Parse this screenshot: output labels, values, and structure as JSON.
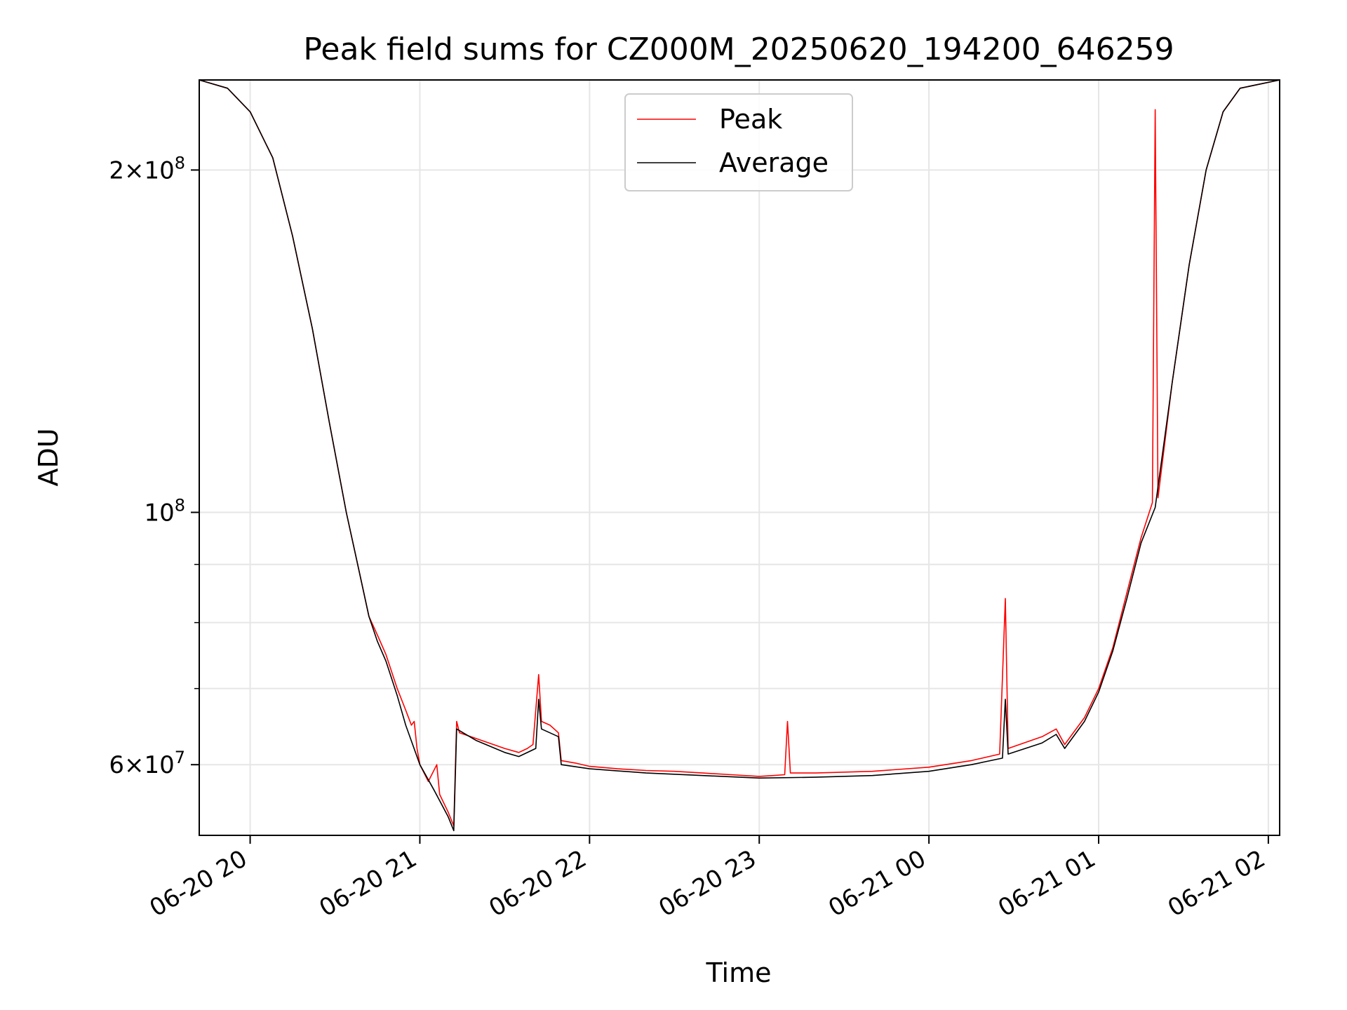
{
  "chart_data": {
    "type": "line",
    "title": "Peak field sums for CZ000M_20250620_194200_646259",
    "xlabel": "Time",
    "ylabel": "ADU",
    "yscale": "log",
    "xlim": [
      "2025-06-20 19:42",
      "2025-06-21 02:04"
    ],
    "ylim": [
      52000000,
      240000000
    ],
    "grid": true,
    "legend_position": "top-center",
    "x_ticks": [
      "06-20 20",
      "06-20 21",
      "06-20 22",
      "06-20 23",
      "06-21 00",
      "06-21 01",
      "06-21 02"
    ],
    "y_major_ticks": [
      {
        "value": 60000000,
        "mantissa": "6",
        "exponent": "7"
      },
      {
        "value": 100000000,
        "mantissa": "",
        "exponent": "8"
      },
      {
        "value": 200000000,
        "mantissa": "2",
        "exponent": "8"
      }
    ],
    "y_minor_gridlines": [
      70000000,
      80000000,
      90000000
    ],
    "series": [
      {
        "name": "Peak",
        "color": "#ff0000",
        "points": [
          [
            "2025-06-20 19:42",
            240000000
          ],
          [
            "2025-06-20 19:52",
            236000000
          ],
          [
            "2025-06-20 20:00",
            225000000
          ],
          [
            "2025-06-20 20:08",
            205000000
          ],
          [
            "2025-06-20 20:15",
            175000000
          ],
          [
            "2025-06-20 20:22",
            145000000
          ],
          [
            "2025-06-20 20:28",
            120000000
          ],
          [
            "2025-06-20 20:34",
            100000000
          ],
          [
            "2025-06-20 20:38",
            90000000
          ],
          [
            "2025-06-20 20:42",
            81000000
          ],
          [
            "2025-06-20 20:45",
            78000000
          ],
          [
            "2025-06-20 20:48",
            75000000
          ],
          [
            "2025-06-20 20:52",
            70000000
          ],
          [
            "2025-06-20 20:55",
            67000000
          ],
          [
            "2025-06-20 20:57",
            65000000
          ],
          [
            "2025-06-20 20:58",
            65500000
          ],
          [
            "2025-06-20 20:59",
            62000000
          ],
          [
            "2025-06-20 21:00",
            60000000
          ],
          [
            "2025-06-20 21:03",
            58000000
          ],
          [
            "2025-06-20 21:06",
            60000000
          ],
          [
            "2025-06-20 21:07",
            56500000
          ],
          [
            "2025-06-20 21:10",
            54500000
          ],
          [
            "2025-06-20 21:12",
            53000000
          ],
          [
            "2025-06-20 21:13",
            65500000
          ],
          [
            "2025-06-20 21:14",
            64000000
          ],
          [
            "2025-06-20 21:18",
            63500000
          ],
          [
            "2025-06-20 21:22",
            63000000
          ],
          [
            "2025-06-20 21:26",
            62500000
          ],
          [
            "2025-06-20 21:30",
            62000000
          ],
          [
            "2025-06-20 21:35",
            61500000
          ],
          [
            "2025-06-20 21:38",
            62000000
          ],
          [
            "2025-06-20 21:40",
            62500000
          ],
          [
            "2025-06-20 21:42",
            72000000
          ],
          [
            "2025-06-20 21:43",
            65500000
          ],
          [
            "2025-06-20 21:46",
            65000000
          ],
          [
            "2025-06-20 21:49",
            64000000
          ],
          [
            "2025-06-20 21:50",
            60500000
          ],
          [
            "2025-06-20 21:55",
            60200000
          ],
          [
            "2025-06-20 22:00",
            59800000
          ],
          [
            "2025-06-20 22:10",
            59500000
          ],
          [
            "2025-06-20 22:20",
            59300000
          ],
          [
            "2025-06-20 22:30",
            59200000
          ],
          [
            "2025-06-20 22:40",
            59000000
          ],
          [
            "2025-06-20 22:50",
            58800000
          ],
          [
            "2025-06-20 23:00",
            58600000
          ],
          [
            "2025-06-20 23:05",
            58700000
          ],
          [
            "2025-06-20 23:09",
            58800000
          ],
          [
            "2025-06-20 23:10",
            65500000
          ],
          [
            "2025-06-20 23:11",
            59000000
          ],
          [
            "2025-06-20 23:20",
            59000000
          ],
          [
            "2025-06-20 23:40",
            59200000
          ],
          [
            "2025-06-21 00:00",
            59700000
          ],
          [
            "2025-06-21 00:15",
            60500000
          ],
          [
            "2025-06-21 00:25",
            61300000
          ],
          [
            "2025-06-21 00:27",
            84000000
          ],
          [
            "2025-06-21 00:28",
            62000000
          ],
          [
            "2025-06-21 00:40",
            63500000
          ],
          [
            "2025-06-21 00:45",
            64500000
          ],
          [
            "2025-06-21 00:48",
            62500000
          ],
          [
            "2025-06-21 00:55",
            66000000
          ],
          [
            "2025-06-21 01:00",
            70000000
          ],
          [
            "2025-06-21 01:05",
            76000000
          ],
          [
            "2025-06-21 01:10",
            85000000
          ],
          [
            "2025-06-21 01:15",
            95000000
          ],
          [
            "2025-06-21 01:19",
            102000000
          ],
          [
            "2025-06-21 01:20",
            226000000
          ],
          [
            "2025-06-21 01:21",
            103000000
          ],
          [
            "2025-06-21 01:26",
            130000000
          ],
          [
            "2025-06-21 01:32",
            165000000
          ],
          [
            "2025-06-21 01:38",
            200000000
          ],
          [
            "2025-06-21 01:44",
            225000000
          ],
          [
            "2025-06-21 01:50",
            236000000
          ],
          [
            "2025-06-21 02:04",
            240000000
          ]
        ]
      },
      {
        "name": "Average",
        "color": "#000000",
        "points": [
          [
            "2025-06-20 19:42",
            240000000
          ],
          [
            "2025-06-20 19:52",
            236000000
          ],
          [
            "2025-06-20 20:00",
            225000000
          ],
          [
            "2025-06-20 20:08",
            205000000
          ],
          [
            "2025-06-20 20:15",
            175000000
          ],
          [
            "2025-06-20 20:22",
            145000000
          ],
          [
            "2025-06-20 20:28",
            120000000
          ],
          [
            "2025-06-20 20:34",
            100000000
          ],
          [
            "2025-06-20 20:38",
            90000000
          ],
          [
            "2025-06-20 20:42",
            81000000
          ],
          [
            "2025-06-20 20:45",
            77000000
          ],
          [
            "2025-06-20 20:48",
            74000000
          ],
          [
            "2025-06-20 20:52",
            69000000
          ],
          [
            "2025-06-20 20:55",
            65000000
          ],
          [
            "2025-06-20 21:00",
            60000000
          ],
          [
            "2025-06-20 21:05",
            57000000
          ],
          [
            "2025-06-20 21:10",
            54000000
          ],
          [
            "2025-06-20 21:12",
            52500000
          ],
          [
            "2025-06-20 21:13",
            64500000
          ],
          [
            "2025-06-20 21:20",
            63000000
          ],
          [
            "2025-06-20 21:30",
            61500000
          ],
          [
            "2025-06-20 21:35",
            61000000
          ],
          [
            "2025-06-20 21:41",
            62000000
          ],
          [
            "2025-06-20 21:42",
            68500000
          ],
          [
            "2025-06-20 21:43",
            64500000
          ],
          [
            "2025-06-20 21:49",
            63500000
          ],
          [
            "2025-06-20 21:50",
            60000000
          ],
          [
            "2025-06-20 22:00",
            59500000
          ],
          [
            "2025-06-20 22:20",
            59000000
          ],
          [
            "2025-06-20 22:40",
            58700000
          ],
          [
            "2025-06-20 23:00",
            58400000
          ],
          [
            "2025-06-20 23:20",
            58500000
          ],
          [
            "2025-06-20 23:40",
            58700000
          ],
          [
            "2025-06-21 00:00",
            59200000
          ],
          [
            "2025-06-21 00:15",
            60000000
          ],
          [
            "2025-06-21 00:26",
            60800000
          ],
          [
            "2025-06-21 00:27",
            68500000
          ],
          [
            "2025-06-21 00:28",
            61300000
          ],
          [
            "2025-06-21 00:40",
            62700000
          ],
          [
            "2025-06-21 00:45",
            63800000
          ],
          [
            "2025-06-21 00:48",
            62000000
          ],
          [
            "2025-06-21 00:55",
            65500000
          ],
          [
            "2025-06-21 01:00",
            69500000
          ],
          [
            "2025-06-21 01:05",
            75500000
          ],
          [
            "2025-06-21 01:10",
            84000000
          ],
          [
            "2025-06-21 01:15",
            94000000
          ],
          [
            "2025-06-21 01:20",
            101000000
          ],
          [
            "2025-06-21 01:26",
            130000000
          ],
          [
            "2025-06-21 01:32",
            165000000
          ],
          [
            "2025-06-21 01:38",
            200000000
          ],
          [
            "2025-06-21 01:44",
            225000000
          ],
          [
            "2025-06-21 01:50",
            236000000
          ],
          [
            "2025-06-21 02:04",
            240000000
          ]
        ]
      }
    ]
  }
}
